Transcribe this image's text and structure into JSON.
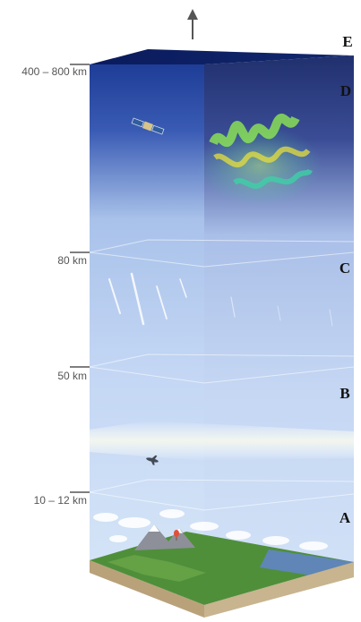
{
  "altitudes": [
    {
      "id": "exosphere-base",
      "label": "400 – 800 km"
    },
    {
      "id": "mesopause",
      "label": "80 km"
    },
    {
      "id": "stratopause",
      "label": "50 km"
    },
    {
      "id": "tropopause",
      "label": "10 – 12 km"
    }
  ],
  "layers": [
    {
      "id": "e",
      "label": "E"
    },
    {
      "id": "d",
      "label": "D"
    },
    {
      "id": "c",
      "label": "C"
    },
    {
      "id": "b",
      "label": "B"
    },
    {
      "id": "a",
      "label": "A"
    }
  ],
  "colors": {
    "space": "#0d1f66",
    "upper": "#2e4aa8",
    "sky": "#c9dbf5",
    "side_dark": "#25366f",
    "ground": "#4f8f3a",
    "water": "#5f86b6",
    "soil": "#b9a27a",
    "aurora_green": "#7fe04a",
    "aurora_yellow": "#e7e03a",
    "aurora_cyan": "#39d0a8"
  },
  "icons": [
    "up-arrow-icon",
    "satellite-icon",
    "aurora-icon",
    "meteor-icon",
    "cloud-icon",
    "airplane-icon",
    "mountain-icon",
    "balloon-icon"
  ]
}
